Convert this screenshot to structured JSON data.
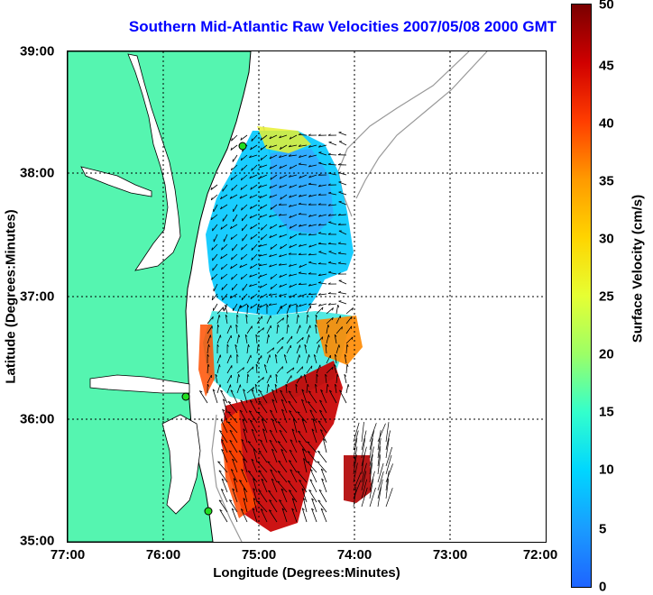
{
  "title": "Southern Mid-Atlantic Raw Velocities 2007/05/08 2000 GMT",
  "x_axis": {
    "label": "Longitude (Degrees:Minutes)",
    "ticks": [
      "77:00",
      "76:00",
      "75:00",
      "74:00",
      "73:00",
      "72:00"
    ]
  },
  "y_axis": {
    "label": "Latitude (Degrees:Minutes)",
    "ticks": [
      "39:00",
      "38:00",
      "37:00",
      "36:00",
      "35:00"
    ]
  },
  "colorbar": {
    "label": "Surface Velocity (cm/s)",
    "ticks": [
      "50",
      "45",
      "40",
      "35",
      "30",
      "25",
      "20",
      "15",
      "10",
      "5",
      "0"
    ],
    "range": [
      0,
      50
    ]
  },
  "colors": {
    "land": "#55f5b0",
    "title": "#0000ff",
    "station": "#22dd22",
    "bathymetry": "#999999"
  },
  "extent": {
    "lon": [
      -77,
      -72
    ],
    "lat": [
      35,
      39
    ]
  }
}
